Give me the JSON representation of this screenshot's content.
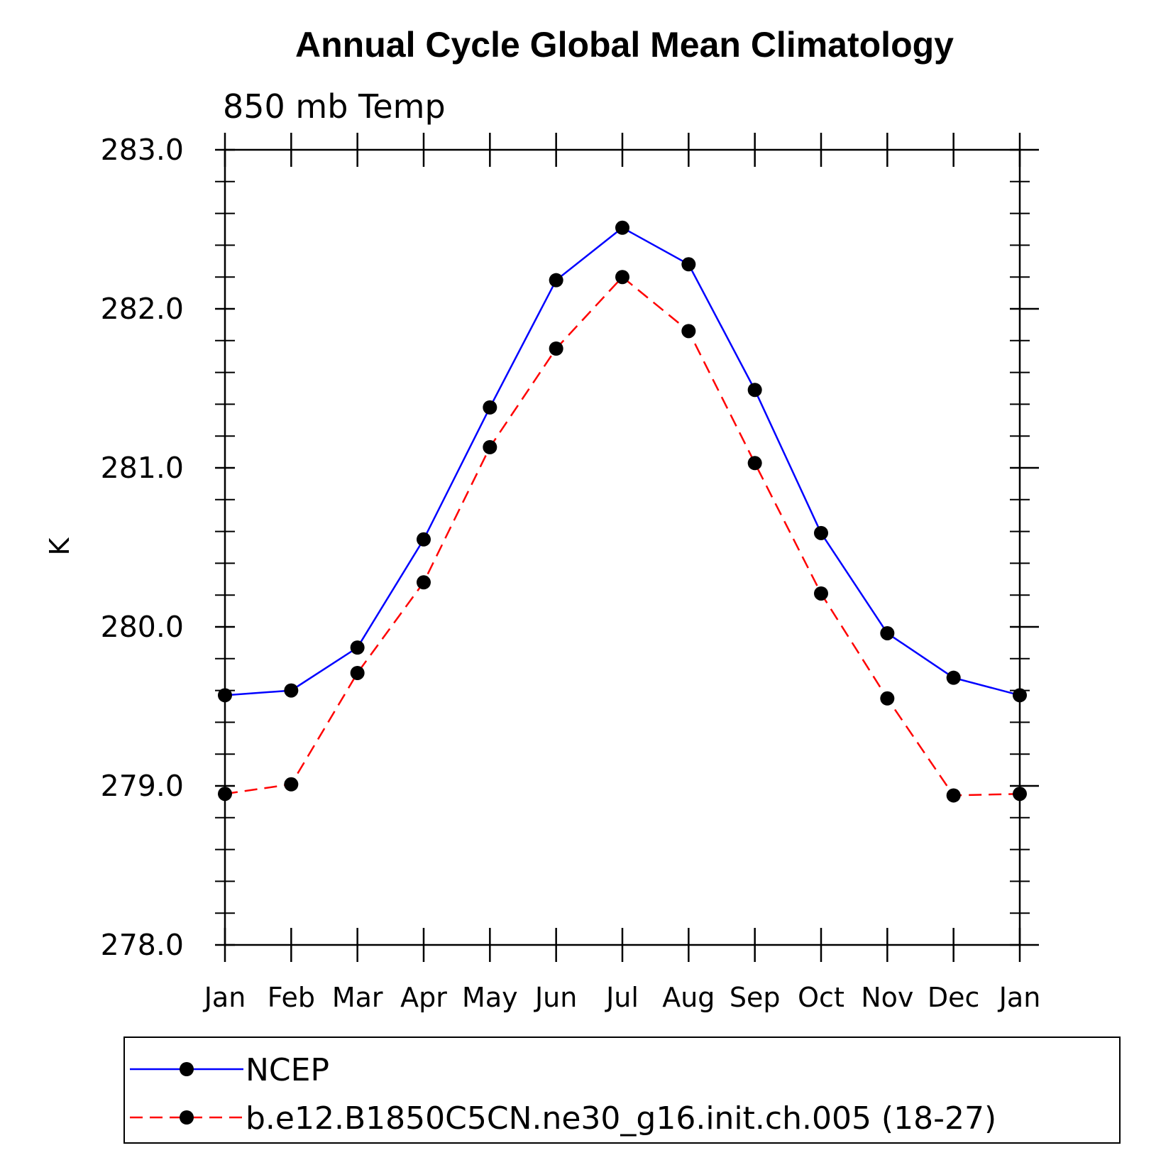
{
  "chart_data": {
    "type": "line",
    "title": "Annual Cycle Global Mean Climatology",
    "subtitle": "850 mb Temp",
    "ylabel": "K",
    "xlabel": "",
    "categories": [
      "Jan",
      "Feb",
      "Mar",
      "Apr",
      "May",
      "Jun",
      "Jul",
      "Aug",
      "Sep",
      "Oct",
      "Nov",
      "Dec",
      "Jan"
    ],
    "ylim": [
      278.0,
      283.0
    ],
    "y_ticks": [
      "278.0",
      "279.0",
      "280.0",
      "281.0",
      "282.0",
      "283.0"
    ],
    "grid": false,
    "legend_position": "bottom",
    "series": [
      {
        "name": "NCEP",
        "color": "#0000ff",
        "line_style": "solid",
        "marker": "filled-circle",
        "values": [
          279.57,
          279.6,
          279.87,
          280.55,
          281.38,
          282.18,
          282.51,
          282.28,
          281.49,
          280.59,
          279.96,
          279.68,
          279.57
        ]
      },
      {
        "name": "b.e12.B1850C5CN.ne30_g16.init.ch.005 (18-27)",
        "color": "#ff0000",
        "line_style": "dashed",
        "marker": "filled-circle",
        "values": [
          278.95,
          279.01,
          279.71,
          280.28,
          281.13,
          281.75,
          282.2,
          281.86,
          281.03,
          280.21,
          279.55,
          278.94,
          278.95
        ]
      }
    ]
  }
}
